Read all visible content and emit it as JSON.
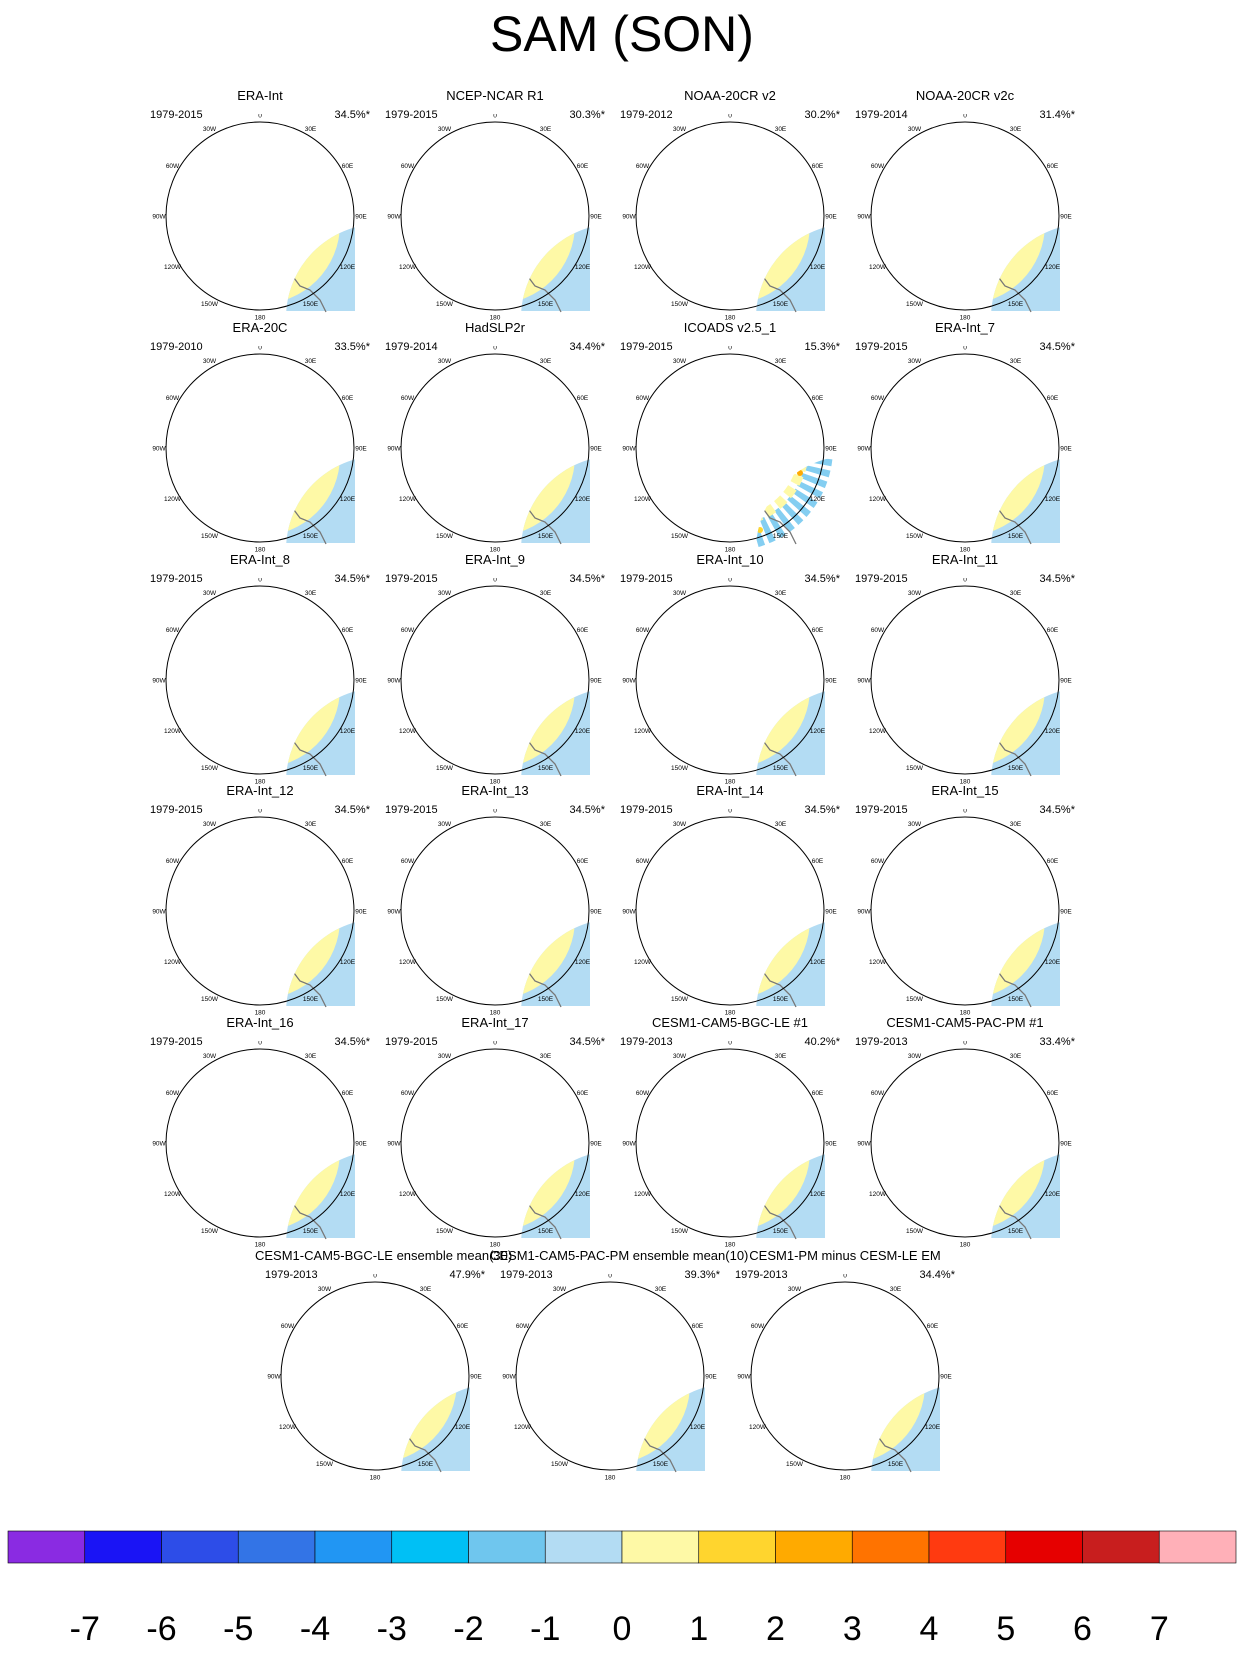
{
  "title": "SAM (SON)",
  "panels": [
    {
      "name": "ERA-Int",
      "period": "1979-2015",
      "var": "34.5%*",
      "kind": "era"
    },
    {
      "name": "NCEP-NCAR R1",
      "period": "1979-2015",
      "var": "30.3%*",
      "kind": "era"
    },
    {
      "name": "NOAA-20CR v2",
      "period": "1979-2012",
      "var": "30.2%*",
      "kind": "era"
    },
    {
      "name": "NOAA-20CR v2c",
      "period": "1979-2014",
      "var": "31.4%*",
      "kind": "era"
    },
    {
      "name": "ERA-20C",
      "period": "1979-2010",
      "var": "33.5%*",
      "kind": "era"
    },
    {
      "name": "HadSLP2r",
      "period": "1979-2014",
      "var": "34.4%*",
      "kind": "had"
    },
    {
      "name": "ICOADS v2.5_1",
      "period": "1979-2015",
      "var": "15.3%*",
      "kind": "icoads"
    },
    {
      "name": "ERA-Int_7",
      "period": "1979-2015",
      "var": "34.5%*",
      "kind": "era"
    },
    {
      "name": "ERA-Int_8",
      "period": "1979-2015",
      "var": "34.5%*",
      "kind": "era"
    },
    {
      "name": "ERA-Int_9",
      "period": "1979-2015",
      "var": "34.5%*",
      "kind": "era"
    },
    {
      "name": "ERA-Int_10",
      "period": "1979-2015",
      "var": "34.5%*",
      "kind": "era"
    },
    {
      "name": "ERA-Int_11",
      "period": "1979-2015",
      "var": "34.5%*",
      "kind": "era"
    },
    {
      "name": "ERA-Int_12",
      "period": "1979-2015",
      "var": "34.5%*",
      "kind": "era"
    },
    {
      "name": "ERA-Int_13",
      "period": "1979-2015",
      "var": "34.5%*",
      "kind": "era"
    },
    {
      "name": "ERA-Int_14",
      "period": "1979-2015",
      "var": "34.5%*",
      "kind": "era"
    },
    {
      "name": "ERA-Int_15",
      "period": "1979-2015",
      "var": "34.5%*",
      "kind": "era"
    },
    {
      "name": "ERA-Int_16",
      "period": "1979-2015",
      "var": "34.5%*",
      "kind": "era"
    },
    {
      "name": "ERA-Int_17",
      "period": "1979-2015",
      "var": "34.5%*",
      "kind": "era"
    },
    {
      "name": "CESM1-CAM5-BGC-LE #1",
      "period": "1979-2013",
      "var": "40.2%*",
      "kind": "cesm"
    },
    {
      "name": "CESM1-CAM5-PAC-PM #1",
      "period": "1979-2013",
      "var": "33.4%*",
      "kind": "pac"
    },
    {
      "name": "CESM1-CAM5-BGC-LE ensemble mean(30)",
      "period": "1979-2013",
      "var": "47.9%*",
      "kind": "lemean"
    },
    {
      "name": "CESM1-CAM5-PAC-PM ensemble mean(10)",
      "period": "1979-2013",
      "var": "39.3%*",
      "kind": "pmmean"
    },
    {
      "name": "CESM1-PM minus CESM-LE EM",
      "period": "1979-2013",
      "var": "34.4%*",
      "kind": "diff"
    }
  ],
  "lon_labels": [
    "0",
    "30E",
    "60E",
    "90E",
    "120E",
    "150E",
    "180",
    "150W",
    "120W",
    "90W",
    "60W",
    "30W"
  ],
  "colorbar": {
    "colors": [
      "#8a2be2",
      "#1a14f5",
      "#2d4de8",
      "#3374e6",
      "#2196f3",
      "#00c0f5",
      "#6fc6ee",
      "#b3dcf3",
      "#fef9a6",
      "#ffd52e",
      "#ffaa00",
      "#ff7300",
      "#ff3a10",
      "#e60000",
      "#c81e1e",
      "#ffb0b8"
    ],
    "tick_labels": [
      "-7",
      "-6",
      "-5",
      "-4",
      "-3",
      "-2",
      "-1",
      "0",
      "1",
      "2",
      "3",
      "4",
      "5",
      "6",
      "7"
    ]
  },
  "palette": {
    "ocean": "#b3dcf3",
    "pos1": "#fef9a6",
    "pos2": "#ffd52e",
    "pos3": "#ffaa00",
    "neg2": "#6fc6ee",
    "neg3": "#00c0f5",
    "neg4": "#2196f3",
    "neg5": "#3374e6",
    "land": "#777777"
  }
}
